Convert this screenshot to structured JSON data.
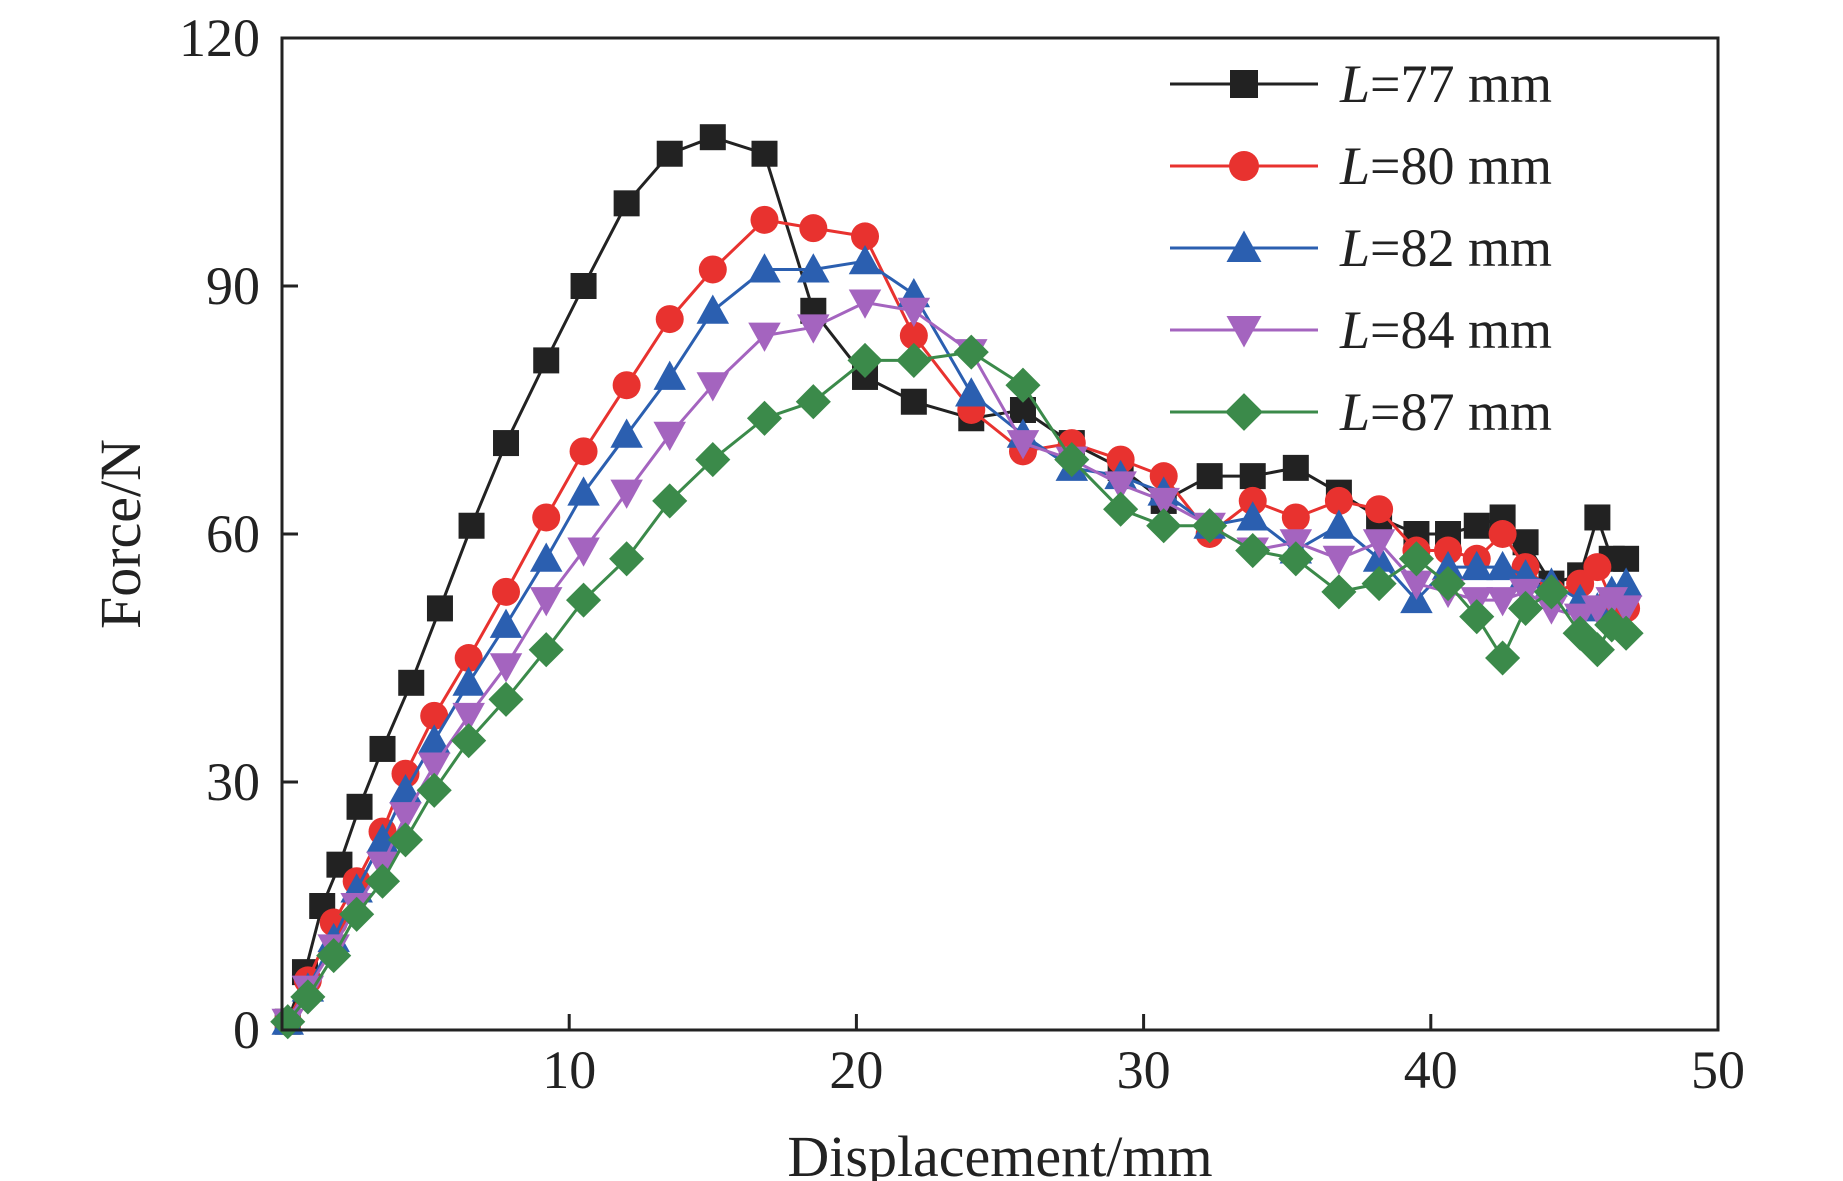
{
  "chart_data": {
    "type": "line",
    "title": "",
    "xlabel": "Displacement/mm",
    "ylabel": "Force/N",
    "xlim": [
      0,
      50
    ],
    "ylim": [
      0,
      120
    ],
    "xticks": [
      10,
      20,
      30,
      40,
      50
    ],
    "yticks": [
      0,
      30,
      60,
      90,
      120
    ],
    "x_tick_labels": [
      "10",
      "20",
      "30",
      "40",
      "50"
    ],
    "y_tick_labels": [
      "0",
      "30",
      "60",
      "90",
      "120"
    ],
    "legend_position": "top-right",
    "series": [
      {
        "name": "L=77 mm",
        "name_var": "L",
        "name_rest": "=77 mm",
        "color": "#222222",
        "marker": "square",
        "points": [
          [
            0.2,
            1
          ],
          [
            0.8,
            7
          ],
          [
            1.4,
            15
          ],
          [
            2,
            20
          ],
          [
            2.7,
            27
          ],
          [
            3.5,
            34
          ],
          [
            4.5,
            42
          ],
          [
            5.5,
            51
          ],
          [
            6.6,
            61
          ],
          [
            7.8,
            71
          ],
          [
            9.2,
            81
          ],
          [
            10.5,
            90
          ],
          [
            12,
            100
          ],
          [
            13.5,
            106
          ],
          [
            15,
            108
          ],
          [
            16.8,
            106
          ],
          [
            18.5,
            87
          ],
          [
            20.3,
            79
          ],
          [
            22,
            76
          ],
          [
            24,
            74
          ],
          [
            25.8,
            75
          ],
          [
            27.5,
            71
          ],
          [
            29.2,
            68
          ],
          [
            30.7,
            64
          ],
          [
            32.3,
            67
          ],
          [
            33.8,
            67
          ],
          [
            35.3,
            68
          ],
          [
            36.8,
            65
          ],
          [
            38.2,
            62
          ],
          [
            39.5,
            60
          ],
          [
            40.6,
            60
          ],
          [
            41.6,
            61
          ],
          [
            42.5,
            62
          ],
          [
            43.3,
            59
          ],
          [
            44.2,
            54
          ],
          [
            45.2,
            55
          ],
          [
            45.8,
            62
          ],
          [
            46.3,
            57
          ],
          [
            46.8,
            57
          ]
        ]
      },
      {
        "name": "L=80 mm",
        "name_var": "L",
        "name_rest": "=80 mm",
        "color": "#e8322f",
        "marker": "circle",
        "points": [
          [
            0.2,
            1
          ],
          [
            0.9,
            6
          ],
          [
            1.8,
            13
          ],
          [
            2.6,
            18
          ],
          [
            3.5,
            24
          ],
          [
            4.3,
            31
          ],
          [
            5.3,
            38
          ],
          [
            6.5,
            45
          ],
          [
            7.8,
            53
          ],
          [
            9.2,
            62
          ],
          [
            10.5,
            70
          ],
          [
            12,
            78
          ],
          [
            13.5,
            86
          ],
          [
            15,
            92
          ],
          [
            16.8,
            98
          ],
          [
            18.5,
            97
          ],
          [
            20.3,
            96
          ],
          [
            22,
            84
          ],
          [
            24,
            75
          ],
          [
            25.8,
            70
          ],
          [
            27.5,
            71
          ],
          [
            29.2,
            69
          ],
          [
            30.7,
            67
          ],
          [
            32.3,
            60
          ],
          [
            33.8,
            64
          ],
          [
            35.3,
            62
          ],
          [
            36.8,
            64
          ],
          [
            38.2,
            63
          ],
          [
            39.5,
            58
          ],
          [
            40.6,
            58
          ],
          [
            41.6,
            57
          ],
          [
            42.5,
            60
          ],
          [
            43.3,
            56
          ],
          [
            44.2,
            53
          ],
          [
            45.2,
            54
          ],
          [
            45.8,
            56
          ],
          [
            46.3,
            52
          ],
          [
            46.8,
            51
          ]
        ]
      },
      {
        "name": "L=82 mm",
        "name_var": "L",
        "name_rest": "=82 mm",
        "color": "#2b5fb0",
        "marker": "triangle-up",
        "points": [
          [
            0.2,
            1
          ],
          [
            0.9,
            5
          ],
          [
            1.8,
            11
          ],
          [
            2.6,
            17
          ],
          [
            3.5,
            23
          ],
          [
            4.3,
            29
          ],
          [
            5.3,
            35
          ],
          [
            6.5,
            42
          ],
          [
            7.8,
            49
          ],
          [
            9.2,
            57
          ],
          [
            10.5,
            65
          ],
          [
            12,
            72
          ],
          [
            13.5,
            79
          ],
          [
            15,
            87
          ],
          [
            16.8,
            92
          ],
          [
            18.5,
            92
          ],
          [
            20.3,
            93
          ],
          [
            22,
            89
          ],
          [
            24,
            77
          ],
          [
            25.8,
            72
          ],
          [
            27.5,
            68
          ],
          [
            29.2,
            67
          ],
          [
            30.7,
            65
          ],
          [
            32.3,
            61
          ],
          [
            33.8,
            62
          ],
          [
            35.3,
            58
          ],
          [
            36.8,
            61
          ],
          [
            38.2,
            57
          ],
          [
            39.5,
            52
          ],
          [
            40.6,
            56
          ],
          [
            41.6,
            56
          ],
          [
            42.5,
            56
          ],
          [
            43.3,
            55
          ],
          [
            44.2,
            54
          ],
          [
            45.2,
            52
          ],
          [
            45.8,
            51
          ],
          [
            46.3,
            53
          ],
          [
            46.8,
            54
          ]
        ]
      },
      {
        "name": "L=84 mm",
        "name_var": "L",
        "name_rest": "=84 mm",
        "color": "#a464bf",
        "marker": "triangle-down",
        "points": [
          [
            0.2,
            1
          ],
          [
            0.9,
            5
          ],
          [
            1.8,
            10
          ],
          [
            2.6,
            15
          ],
          [
            3.5,
            20
          ],
          [
            4.3,
            26
          ],
          [
            5.3,
            32
          ],
          [
            6.5,
            38
          ],
          [
            7.8,
            44
          ],
          [
            9.2,
            52
          ],
          [
            10.5,
            58
          ],
          [
            12,
            65
          ],
          [
            13.5,
            72
          ],
          [
            15,
            78
          ],
          [
            16.8,
            84
          ],
          [
            18.5,
            85
          ],
          [
            20.3,
            88
          ],
          [
            22,
            87
          ],
          [
            24,
            82
          ],
          [
            25.8,
            71
          ],
          [
            27.5,
            69
          ],
          [
            29.2,
            66
          ],
          [
            30.7,
            64
          ],
          [
            32.3,
            61
          ],
          [
            33.8,
            58
          ],
          [
            35.3,
            59
          ],
          [
            36.8,
            57
          ],
          [
            38.2,
            59
          ],
          [
            39.5,
            54
          ],
          [
            40.6,
            53
          ],
          [
            41.6,
            52
          ],
          [
            42.5,
            52
          ],
          [
            43.3,
            53
          ],
          [
            44.2,
            51
          ],
          [
            45.2,
            50
          ],
          [
            45.8,
            51
          ],
          [
            46.3,
            52
          ],
          [
            46.8,
            51
          ]
        ]
      },
      {
        "name": "L=87 mm",
        "name_var": "L",
        "name_rest": "=87 mm",
        "color": "#3b8a4a",
        "marker": "diamond",
        "points": [
          [
            0.2,
            1
          ],
          [
            0.9,
            4
          ],
          [
            1.8,
            9
          ],
          [
            2.6,
            14
          ],
          [
            3.5,
            18
          ],
          [
            4.3,
            23
          ],
          [
            5.3,
            29
          ],
          [
            6.5,
            35
          ],
          [
            7.8,
            40
          ],
          [
            9.2,
            46
          ],
          [
            10.5,
            52
          ],
          [
            12,
            57
          ],
          [
            13.5,
            64
          ],
          [
            15,
            69
          ],
          [
            16.8,
            74
          ],
          [
            18.5,
            76
          ],
          [
            20.3,
            81
          ],
          [
            22,
            81
          ],
          [
            24,
            82
          ],
          [
            25.8,
            78
          ],
          [
            27.5,
            69
          ],
          [
            29.2,
            63
          ],
          [
            30.7,
            61
          ],
          [
            32.3,
            61
          ],
          [
            33.8,
            58
          ],
          [
            35.3,
            57
          ],
          [
            36.8,
            53
          ],
          [
            38.2,
            54
          ],
          [
            39.5,
            57
          ],
          [
            40.6,
            54
          ],
          [
            41.6,
            50
          ],
          [
            42.5,
            45
          ],
          [
            43.3,
            51
          ],
          [
            44.2,
            53
          ],
          [
            45.2,
            48
          ],
          [
            45.8,
            46
          ],
          [
            46.3,
            49
          ],
          [
            46.8,
            48
          ]
        ]
      }
    ]
  }
}
